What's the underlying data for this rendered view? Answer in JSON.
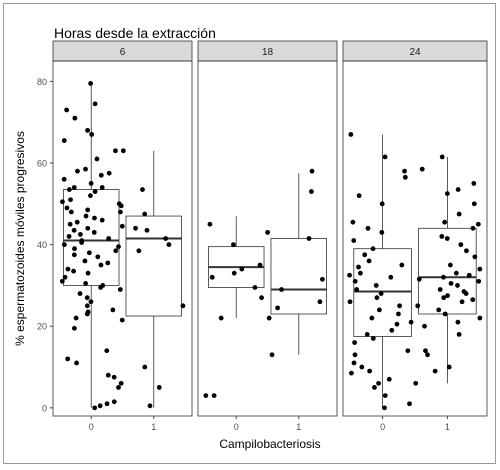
{
  "chart_data": {
    "type": "boxplot",
    "title": "Horas desde la extracción",
    "xlabel": "Campilobacteriosis",
    "ylabel": "% espermatozoides móviles progresivos",
    "ylim": [
      -2,
      85
    ],
    "yticks": [
      0,
      20,
      40,
      60,
      80
    ],
    "grid": false,
    "categories": [
      "0",
      "1"
    ],
    "panels": [
      {
        "label": "6",
        "groups": [
          {
            "category": "0",
            "box": {
              "min": 0,
              "q1": 30,
              "median": 41,
              "q3": 53.5,
              "max": 80
            },
            "points": [
              79.5,
              74.5,
              73,
              71,
              68,
              67,
              65.5,
              63,
              61,
              58.5,
              58,
              57.5,
              57,
              56,
              55,
              54,
              54,
              53.5,
              53,
              52,
              51,
              50.5,
              50,
              49.5,
              49,
              48.5,
              48,
              48,
              47,
              46.5,
              46,
              45.5,
              45,
              44.5,
              44,
              43.5,
              43,
              42.5,
              42,
              41.5,
              41,
              40.5,
              40,
              39.5,
              39,
              38.5,
              38,
              37.5,
              37,
              36,
              35.5,
              35,
              34,
              33.5,
              33,
              32,
              31,
              30.5,
              30,
              29.5,
              29,
              28,
              27,
              26,
              25,
              24,
              23.5,
              23,
              22,
              19.5,
              14,
              12,
              11,
              8,
              7.5,
              6,
              5,
              1.5,
              1,
              0.5,
              0
            ]
          },
          {
            "category": "1",
            "box": {
              "min": 0,
              "q1": 22.5,
              "median": 41.5,
              "q3": 47,
              "max": 63
            },
            "points": [
              63,
              53.5,
              47.5,
              44,
              43.5,
              41.5,
              40,
              38.5,
              25,
              21.5,
              10,
              5,
              0.5
            ]
          }
        ]
      },
      {
        "label": "18",
        "groups": [
          {
            "category": "0",
            "box": {
              "min": 22,
              "q1": 29.5,
              "median": 34.5,
              "q3": 39.5,
              "max": 47
            },
            "points": [
              45,
              43,
              40,
              35,
              34,
              33,
              32,
              29.5,
              27,
              22,
              3,
              3
            ]
          },
          {
            "category": "1",
            "box": {
              "min": 13,
              "q1": 23,
              "median": 29,
              "q3": 41.5,
              "max": 57.5
            },
            "points": [
              58,
              53,
              41.5,
              31.5,
              29,
              26,
              24.5,
              22,
              13
            ]
          }
        ]
      },
      {
        "label": "24",
        "groups": [
          {
            "category": "0",
            "box": {
              "min": 0,
              "q1": 17.5,
              "median": 28.5,
              "q3": 39,
              "max": 67
            },
            "points": [
              67,
              61.5,
              58,
              56.5,
              52,
              50,
              45.5,
              44,
              43,
              41,
              39,
              37.5,
              36,
              35,
              34.5,
              33,
              32.5,
              32,
              31,
              30,
              29,
              28,
              27,
              26,
              25,
              24,
              23,
              22,
              21,
              20.5,
              19,
              18,
              17,
              16,
              14,
              13,
              11,
              10,
              9,
              8.5,
              7,
              6,
              5,
              3,
              1,
              0
            ]
          },
          {
            "category": "1",
            "box": {
              "min": 6,
              "q1": 23,
              "median": 32,
              "q3": 44,
              "max": 61.5
            },
            "points": [
              61.5,
              58.5,
              55,
              53.5,
              52.5,
              50,
              47.5,
              45.5,
              45,
              44,
              42,
              41.5,
              40,
              38.5,
              37,
              35,
              34,
              33,
              32.5,
              32,
              31.5,
              31,
              30.5,
              30,
              29,
              28.5,
              28,
              27.5,
              27,
              26.5,
              26,
              25,
              24,
              23,
              22,
              21,
              20,
              18,
              14,
              13,
              10,
              9,
              6
            ]
          }
        ]
      }
    ]
  }
}
